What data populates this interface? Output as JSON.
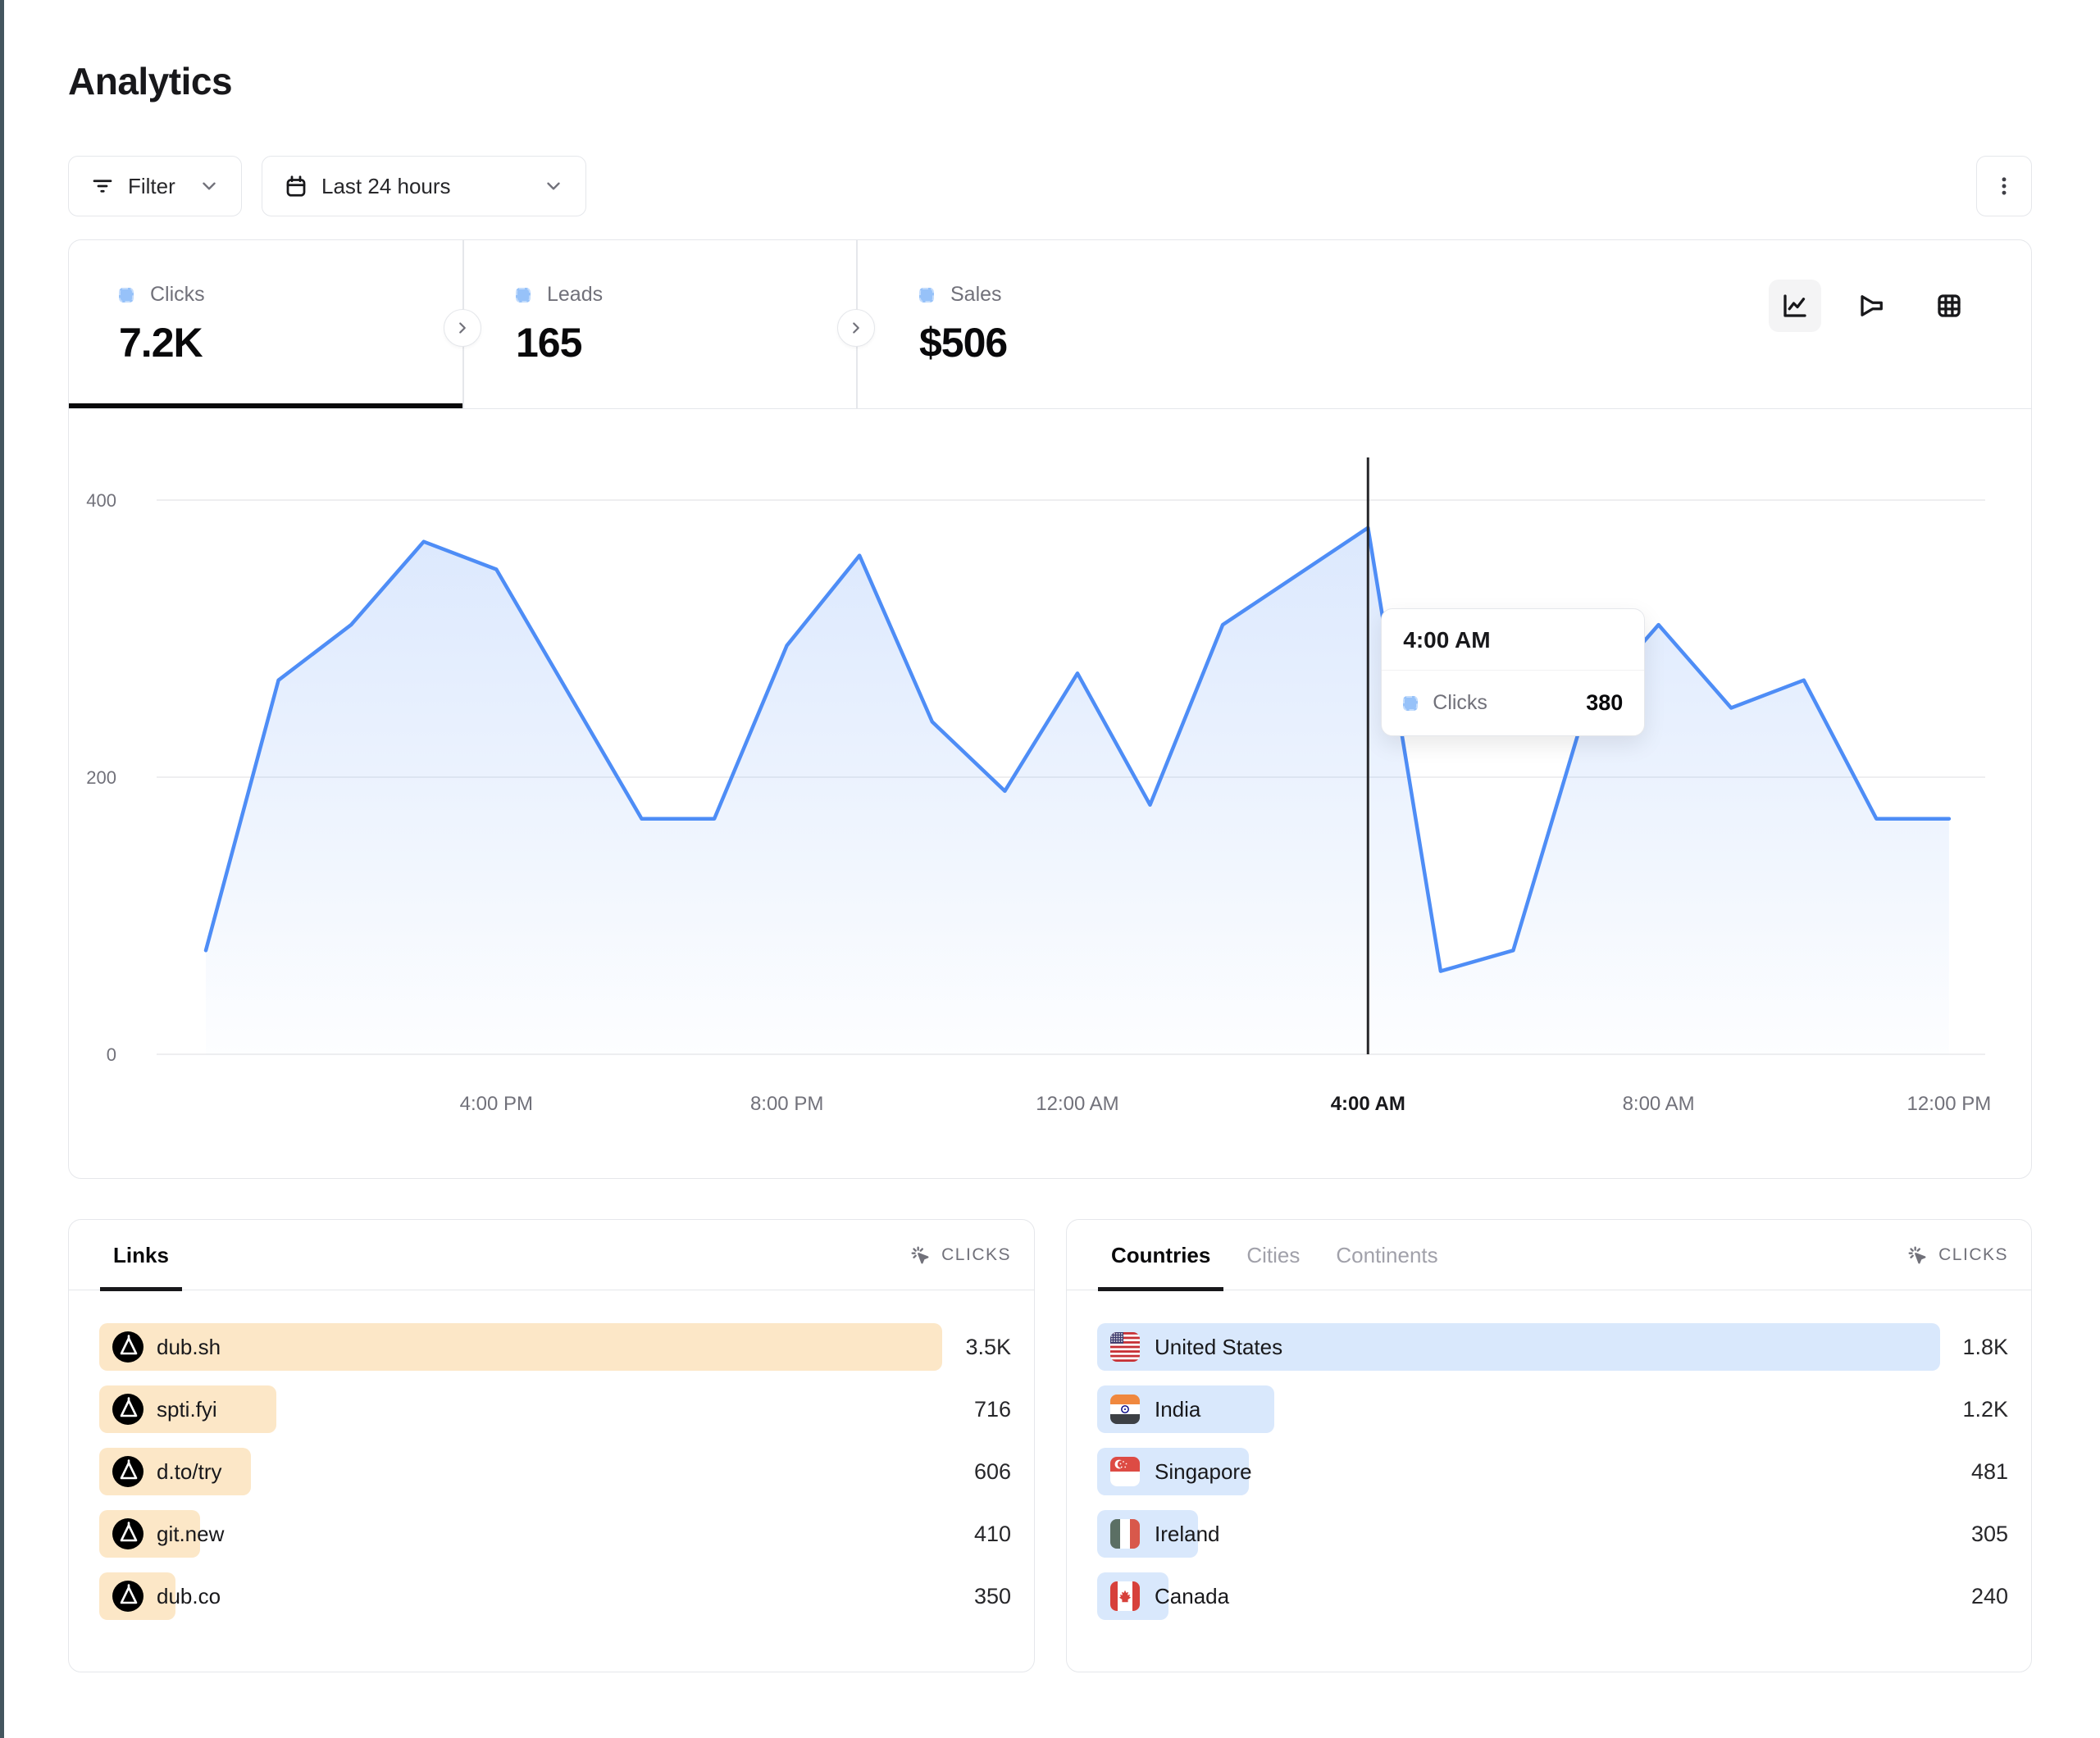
{
  "page": {
    "title": "Analytics"
  },
  "toolbar": {
    "filter_label": "Filter",
    "date_range": "Last 24 hours"
  },
  "stats": {
    "items": [
      {
        "label": "Clicks",
        "value": "7.2K",
        "active": true
      },
      {
        "label": "Leads",
        "value": "165",
        "active": false
      },
      {
        "label": "Sales",
        "value": "$506",
        "active": false
      }
    ]
  },
  "chart_toggles": [
    {
      "icon": "line-chart-icon",
      "active": true
    },
    {
      "icon": "funnel-chart-icon",
      "active": false
    },
    {
      "icon": "grid-table-icon",
      "active": false
    }
  ],
  "chart_data": {
    "type": "area",
    "series": [
      {
        "name": "Clicks",
        "values": [
          75,
          270,
          310,
          370,
          350,
          260,
          170,
          170,
          295,
          360,
          240,
          190,
          275,
          180,
          310,
          345,
          380,
          60,
          75,
          250,
          310,
          250,
          270,
          170,
          170
        ]
      }
    ],
    "xtick_labels": [
      "4:00 PM",
      "8:00 PM",
      "12:00 AM",
      "4:00 AM",
      "8:00 AM",
      "12:00 PM"
    ],
    "xtick_indices": [
      4,
      8,
      12,
      16,
      20,
      24
    ],
    "yticks": [
      0,
      200,
      400
    ],
    "ylim": [
      0,
      400
    ],
    "grid": "horizontal",
    "legend_position": "none",
    "hover": {
      "index": 16,
      "time": "4:00 AM",
      "series": "Clicks",
      "value": "380"
    }
  },
  "links_panel": {
    "tab_label": "Links",
    "metric_label": "CLICKS",
    "rows": [
      {
        "label": "dub.sh",
        "value": "3.5K",
        "bar_pct": 100
      },
      {
        "label": "spti.fyi",
        "value": "716",
        "bar_pct": 21
      },
      {
        "label": "d.to/try",
        "value": "606",
        "bar_pct": 18
      },
      {
        "label": "git.new",
        "value": "410",
        "bar_pct": 12
      },
      {
        "label": "dub.co",
        "value": "350",
        "bar_pct": 9
      }
    ]
  },
  "countries_panel": {
    "tabs": [
      "Countries",
      "Cities",
      "Continents"
    ],
    "active_tab": "Countries",
    "metric_label": "CLICKS",
    "rows": [
      {
        "label": "United States",
        "flag": "us",
        "value": "1.8K",
        "bar_pct": 100
      },
      {
        "label": "India",
        "flag": "in",
        "value": "1.2K",
        "bar_pct": 21
      },
      {
        "label": "Singapore",
        "flag": "sg",
        "value": "481",
        "bar_pct": 18
      },
      {
        "label": "Ireland",
        "flag": "ie",
        "value": "305",
        "bar_pct": 12
      },
      {
        "label": "Canada",
        "flag": "ca",
        "value": "240",
        "bar_pct": 8.5
      }
    ]
  },
  "colors": {
    "accent_blue": "#4E8DF6",
    "area_fill_top": "rgba(78,141,246,0.20)",
    "area_fill_bottom": "rgba(78,141,246,0.01)",
    "bar_orange": "#FCE7C7",
    "bar_blue": "#D9E8FC",
    "border": "#E5E7EB",
    "gridline": "#E8E9EC",
    "cursor": "#27272A",
    "edge_strip": "#44565F"
  }
}
